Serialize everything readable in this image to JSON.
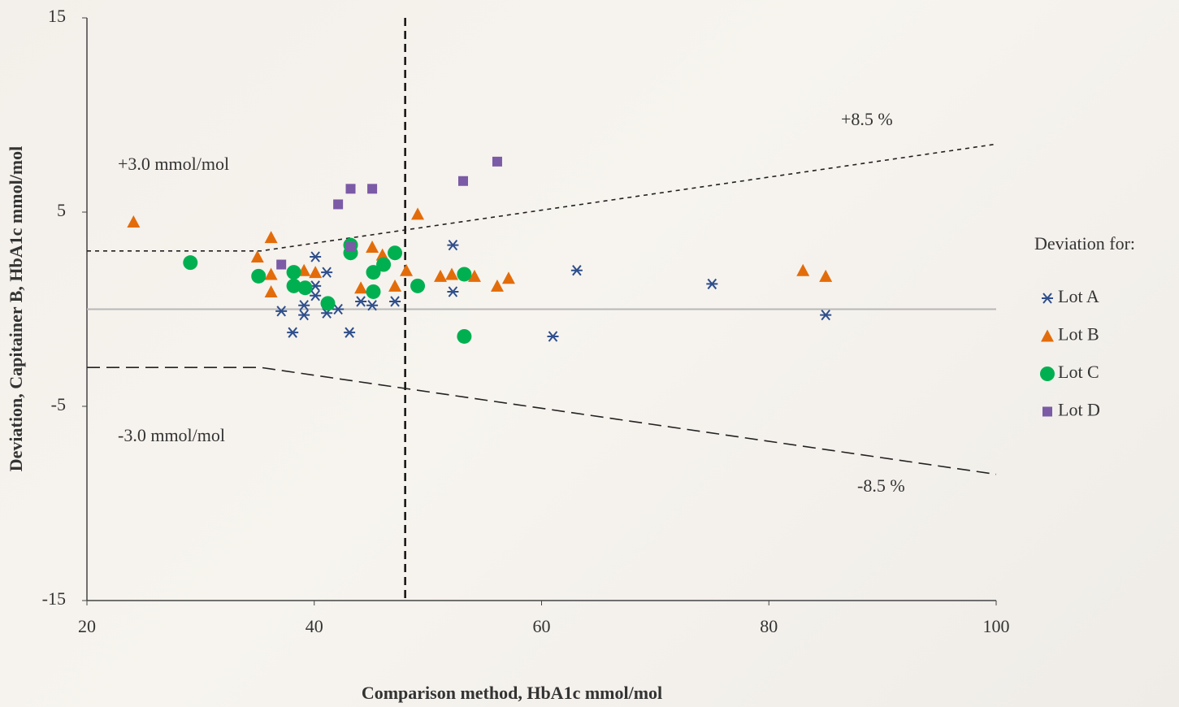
{
  "chart_data": {
    "type": "scatter",
    "x_label": "Comparison method, HbA1c mmol/mol",
    "y_label": "Deviation, Capitainer B, HbA1c mmol/mol",
    "xlim": [
      20,
      100
    ],
    "xticks": [
      20,
      40,
      60,
      80,
      100
    ],
    "ylim": [
      -15,
      15
    ],
    "yticks": [
      -15,
      -5,
      5,
      15
    ],
    "zero_line": 0,
    "cutoff_x": 48,
    "upper_limit": {
      "x": [
        20,
        35.3,
        100
      ],
      "y": [
        3,
        3,
        8.5
      ]
    },
    "lower_limit": {
      "x": [
        20,
        35.3,
        100
      ],
      "y": [
        -3,
        -3,
        -8.5
      ]
    },
    "annotations": [
      "+3.0 mmol/mol",
      "-3.0 mmol/mol",
      "+8.5 %",
      "-8.5 %"
    ],
    "legend_title": "Deviation for:",
    "series": [
      {
        "name": "Lot A",
        "color": "#2e4e8c",
        "marker": "star",
        "x": [
          37.1,
          38.1,
          39.1,
          39.1,
          40.1,
          40.1,
          40.1,
          41.1,
          41.1,
          42.1,
          43.1,
          44.1,
          45.1,
          47.1,
          52.2,
          52.2,
          61.0,
          63.1,
          75.0,
          85.0
        ],
        "values": [
          -0.1,
          -1.2,
          0.2,
          -0.3,
          2.7,
          1.2,
          0.7,
          1.9,
          -0.2,
          0,
          -1.2,
          0.4,
          0.2,
          0.4,
          3.3,
          0.9,
          -1.4,
          2.0,
          1.3,
          -0.3
        ]
      },
      {
        "name": "Lot B",
        "color": "#e36c0a",
        "marker": "triangle",
        "x": [
          24.1,
          36.2,
          35.0,
          36.2,
          36.2,
          39.1,
          40.1,
          44.1,
          45.1,
          46.0,
          47.1,
          48.1,
          49.1,
          51.1,
          52.1,
          54.1,
          56.1,
          57.1,
          83.0,
          85.0
        ],
        "values": [
          4.5,
          3.7,
          2.7,
          1.8,
          0.9,
          2.0,
          1.9,
          1.1,
          3.2,
          2.8,
          1.2,
          2.0,
          4.9,
          1.7,
          1.8,
          1.7,
          1.2,
          1.6,
          2.0,
          1.7
        ]
      },
      {
        "name": "Lot C",
        "color": "#00b050",
        "marker": "circle",
        "x": [
          29.1,
          35.1,
          38.2,
          38.2,
          39.2,
          41.2,
          43.2,
          43.2,
          45.2,
          45.2,
          46.1,
          47.1,
          49.1,
          53.2,
          53.2
        ],
        "values": [
          2.4,
          1.7,
          1.9,
          1.2,
          1.1,
          0.3,
          3.3,
          2.9,
          1.9,
          0.9,
          2.3,
          2.9,
          1.2,
          1.8,
          -1.4
        ]
      },
      {
        "name": "Lot D",
        "color": "#7b5aa6",
        "marker": "square",
        "x": [
          37.1,
          42.1,
          43.2,
          45.1,
          43.2,
          53.1,
          56.1
        ],
        "values": [
          2.3,
          5.4,
          6.2,
          6.2,
          3.2,
          6.6,
          7.6
        ]
      }
    ]
  }
}
